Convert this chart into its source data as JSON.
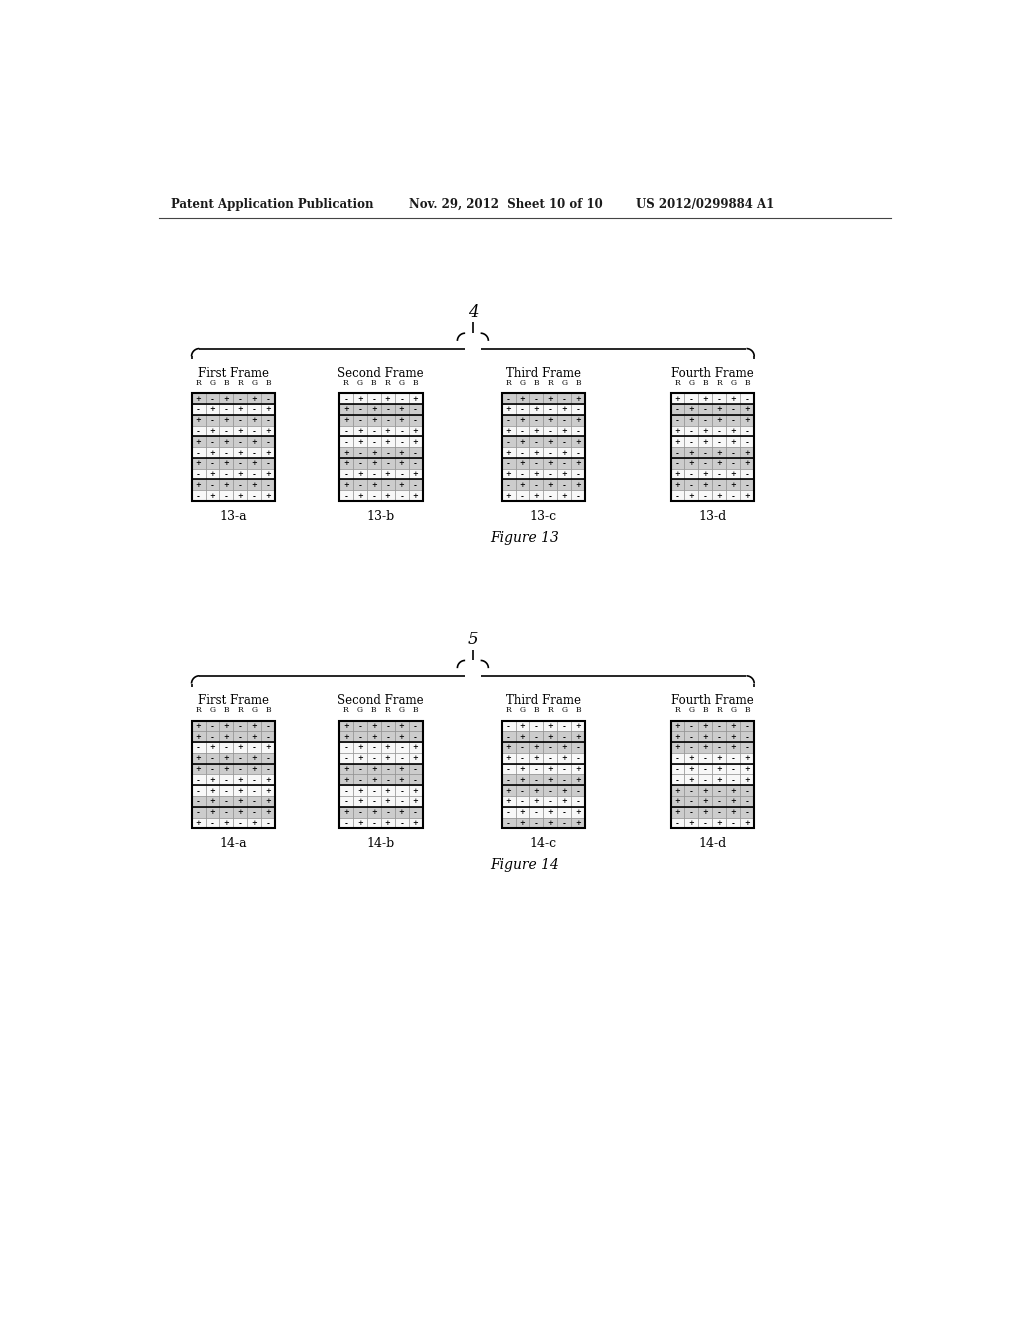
{
  "header_left": "Patent Application Publication",
  "header_mid": "Nov. 29, 2012  Sheet 10 of 10",
  "header_right": "US 2012/0299884 A1",
  "fig13_brace_label": "4",
  "fig14_brace_label": "5",
  "figure13_caption": "Figure 13",
  "figure14_caption": "Figure 14",
  "frame_labels_13": [
    "First Frame",
    "Second Frame",
    "Third Frame",
    "Fourth Frame"
  ],
  "frame_labels_14": [
    "First Frame",
    "Second Frame",
    "Third Frame",
    "Fourth Frame"
  ],
  "subframe_labels_13": [
    "13-a",
    "13-b",
    "13-c",
    "13-d"
  ],
  "subframe_labels_14": [
    "14-a",
    "14-b",
    "14-c",
    "14-d"
  ],
  "col_labels": [
    "R",
    "G",
    "B",
    "R",
    "G",
    "B"
  ],
  "num_rows": 10,
  "num_cols": 6,
  "fig13_patterns": [
    [
      [
        "+",
        "-",
        "+",
        "-",
        "+",
        "-"
      ],
      [
        "-",
        "+",
        "-",
        "+",
        "-",
        "+"
      ],
      [
        "+",
        "-",
        "+",
        "-",
        "+",
        "-"
      ],
      [
        "-",
        "+",
        "-",
        "+",
        "-",
        "+"
      ],
      [
        "+",
        "-",
        "+",
        "-",
        "+",
        "-"
      ],
      [
        "-",
        "+",
        "-",
        "+",
        "-",
        "+"
      ],
      [
        "+",
        "-",
        "+",
        "-",
        "+",
        "-"
      ],
      [
        "-",
        "+",
        "-",
        "+",
        "-",
        "+"
      ],
      [
        "+",
        "-",
        "+",
        "-",
        "+",
        "-"
      ],
      [
        "-",
        "+",
        "-",
        "+",
        "-",
        "+"
      ]
    ],
    [
      [
        "-",
        "+",
        "-",
        "+",
        "-",
        "+"
      ],
      [
        "+",
        "-",
        "+",
        "-",
        "+",
        "-"
      ],
      [
        "+",
        "-",
        "+",
        "-",
        "+",
        "-"
      ],
      [
        "-",
        "+",
        "-",
        "+",
        "-",
        "+"
      ],
      [
        "-",
        "+",
        "-",
        "+",
        "-",
        "+"
      ],
      [
        "+",
        "-",
        "+",
        "-",
        "+",
        "-"
      ],
      [
        "+",
        "-",
        "+",
        "-",
        "+",
        "-"
      ],
      [
        "-",
        "+",
        "-",
        "+",
        "-",
        "+"
      ],
      [
        "+",
        "-",
        "+",
        "-",
        "+",
        "-"
      ],
      [
        "-",
        "+",
        "-",
        "+",
        "-",
        "+"
      ]
    ],
    [
      [
        "-",
        "+",
        "-",
        "+",
        "-",
        "+"
      ],
      [
        "+",
        "-",
        "+",
        "-",
        "+",
        "-"
      ],
      [
        "-",
        "+",
        "-",
        "+",
        "-",
        "+"
      ],
      [
        "+",
        "-",
        "+",
        "-",
        "+",
        "-"
      ],
      [
        "-",
        "+",
        "-",
        "+",
        "-",
        "+"
      ],
      [
        "+",
        "-",
        "+",
        "-",
        "+",
        "-"
      ],
      [
        "-",
        "+",
        "-",
        "+",
        "-",
        "+"
      ],
      [
        "+",
        "-",
        "+",
        "-",
        "+",
        "-"
      ],
      [
        "-",
        "+",
        "-",
        "+",
        "-",
        "+"
      ],
      [
        "+",
        "-",
        "+",
        "-",
        "+",
        "-"
      ]
    ],
    [
      [
        "+",
        "-",
        "+",
        "-",
        "+",
        "-"
      ],
      [
        "-",
        "+",
        "-",
        "+",
        "-",
        "+"
      ],
      [
        "-",
        "+",
        "-",
        "+",
        "-",
        "+"
      ],
      [
        "+",
        "-",
        "+",
        "-",
        "+",
        "-"
      ],
      [
        "+",
        "-",
        "+",
        "-",
        "+",
        "-"
      ],
      [
        "-",
        "+",
        "-",
        "+",
        "-",
        "+"
      ],
      [
        "-",
        "+",
        "-",
        "+",
        "-",
        "+"
      ],
      [
        "+",
        "-",
        "+",
        "-",
        "+",
        "-"
      ],
      [
        "+",
        "-",
        "+",
        "-",
        "+",
        "-"
      ],
      [
        "-",
        "+",
        "-",
        "+",
        "-",
        "+"
      ]
    ]
  ],
  "fig14_patterns": [
    [
      [
        "+",
        "-",
        "+",
        "-",
        "+",
        "-"
      ],
      [
        "+",
        "-",
        "+",
        "-",
        "+",
        "-"
      ],
      [
        "-",
        "+",
        "-",
        "+",
        "-",
        "+"
      ],
      [
        "+",
        "-",
        "+",
        "-",
        "+",
        "-"
      ],
      [
        "+",
        "-",
        "+",
        "-",
        "+",
        "-"
      ],
      [
        "-",
        "+",
        "-",
        "+",
        "-",
        "+"
      ],
      [
        "-",
        "+",
        "-",
        "+",
        "-",
        "+"
      ],
      [
        "-",
        "+",
        "-",
        "+",
        "-",
        "+"
      ],
      [
        "-",
        "+",
        "-",
        "+",
        "-",
        "+"
      ],
      [
        "+",
        "-",
        "+",
        "-",
        "+",
        "-"
      ]
    ],
    [
      [
        "+",
        "-",
        "+",
        "-",
        "+",
        "-"
      ],
      [
        "+",
        "-",
        "+",
        "-",
        "+",
        "-"
      ],
      [
        "-",
        "+",
        "-",
        "+",
        "-",
        "+"
      ],
      [
        "-",
        "+",
        "-",
        "+",
        "-",
        "+"
      ],
      [
        "+",
        "-",
        "+",
        "-",
        "+",
        "-"
      ],
      [
        "+",
        "-",
        "+",
        "-",
        "+",
        "-"
      ],
      [
        "-",
        "+",
        "-",
        "+",
        "-",
        "+"
      ],
      [
        "-",
        "+",
        "-",
        "+",
        "-",
        "+"
      ],
      [
        "+",
        "-",
        "+",
        "-",
        "+",
        "-"
      ],
      [
        "-",
        "+",
        "-",
        "+",
        "-",
        "+"
      ]
    ],
    [
      [
        "-",
        "+",
        "-",
        "+",
        "-",
        "+"
      ],
      [
        "-",
        "+",
        "-",
        "+",
        "-",
        "+"
      ],
      [
        "+",
        "-",
        "+",
        "-",
        "+",
        "-"
      ],
      [
        "+",
        "-",
        "+",
        "-",
        "+",
        "-"
      ],
      [
        "-",
        "+",
        "-",
        "+",
        "-",
        "+"
      ],
      [
        "-",
        "+",
        "-",
        "+",
        "-",
        "+"
      ],
      [
        "+",
        "-",
        "+",
        "-",
        "+",
        "-"
      ],
      [
        "+",
        "-",
        "+",
        "-",
        "+",
        "-"
      ],
      [
        "-",
        "+",
        "-",
        "+",
        "-",
        "+"
      ],
      [
        "-",
        "+",
        "-",
        "+",
        "-",
        "+"
      ]
    ],
    [
      [
        "+",
        "-",
        "+",
        "-",
        "+",
        "-"
      ],
      [
        "+",
        "-",
        "+",
        "-",
        "+",
        "-"
      ],
      [
        "+",
        "-",
        "+",
        "-",
        "+",
        "-"
      ],
      [
        "-",
        "+",
        "-",
        "+",
        "-",
        "+"
      ],
      [
        "-",
        "+",
        "-",
        "+",
        "-",
        "+"
      ],
      [
        "-",
        "+",
        "-",
        "+",
        "-",
        "+"
      ],
      [
        "+",
        "-",
        "+",
        "-",
        "+",
        "-"
      ],
      [
        "+",
        "-",
        "+",
        "-",
        "+",
        "-"
      ],
      [
        "+",
        "-",
        "+",
        "-",
        "+",
        "-"
      ],
      [
        "-",
        "+",
        "-",
        "+",
        "-",
        "+"
      ]
    ]
  ],
  "shaded_rows_13": [
    [
      0,
      2,
      4,
      6,
      8
    ],
    [
      1,
      2,
      5,
      6,
      8
    ],
    [
      0,
      2,
      4,
      6,
      8
    ],
    [
      1,
      2,
      5,
      6,
      8
    ]
  ],
  "shaded_rows_14": [
    [
      0,
      1,
      3,
      4,
      7,
      8
    ],
    [
      0,
      1,
      4,
      5,
      8
    ],
    [
      1,
      2,
      5,
      6,
      9
    ],
    [
      0,
      1,
      2,
      6,
      7,
      8
    ]
  ],
  "thick_after_rows_13": [
    [
      0,
      1,
      3,
      5,
      7
    ],
    [
      0,
      1,
      3,
      5,
      7
    ],
    [
      0,
      1,
      3,
      5,
      7
    ],
    [
      0,
      1,
      3,
      5,
      7
    ]
  ],
  "thick_after_rows_14": [
    [
      1,
      3,
      5,
      7
    ],
    [
      1,
      3,
      5,
      7
    ],
    [
      1,
      3,
      5,
      7
    ],
    [
      1,
      3,
      5,
      7
    ]
  ],
  "bg_color": "#ffffff",
  "cell_shade": "#cccccc",
  "cell_normal": "#f8f8f8",
  "grid_inner_lw": 0.4,
  "grid_thick_lw": 1.2,
  "outer_border_lw": 1.5
}
